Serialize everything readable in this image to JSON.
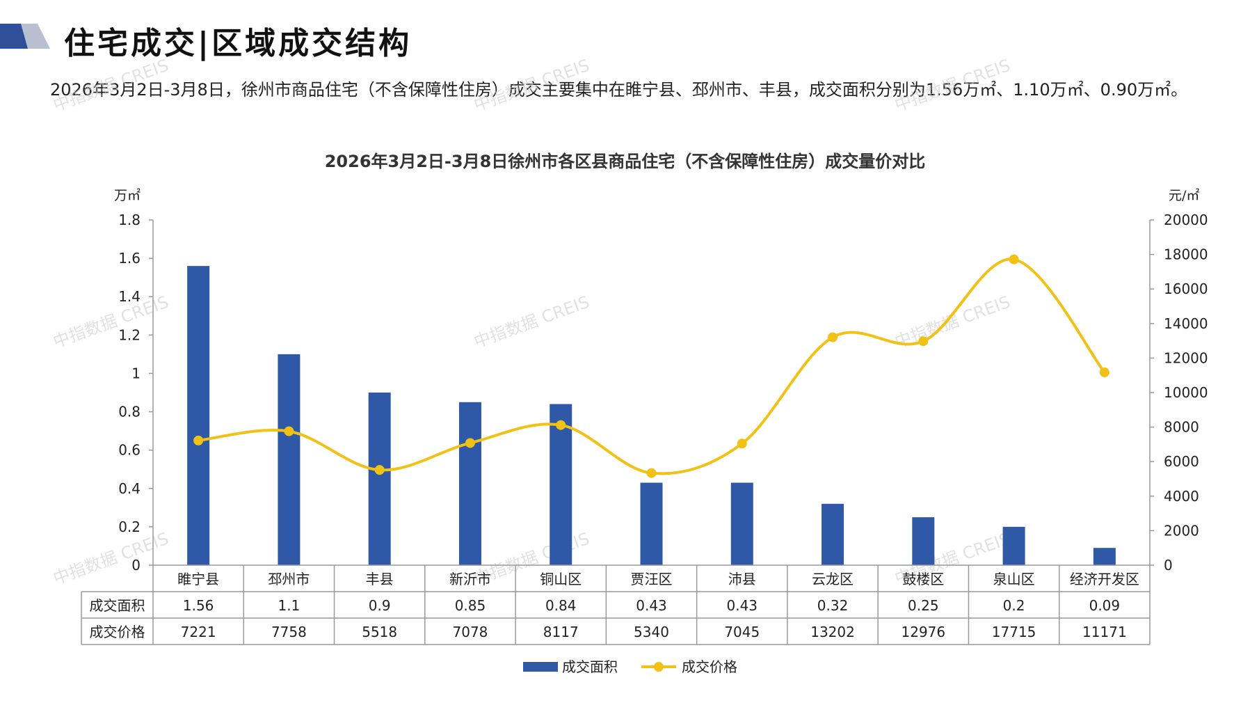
{
  "header": {
    "title": "住宅成交|区域成交结构"
  },
  "summary": "2026年3月2日-3月8日，徐州市商品住宅（不含保障性住房）成交主要集中在睢宁县、邳州市、丰县，成交面积分别为1.56万㎡、1.10万㎡、0.90万㎡。",
  "watermark": "中指数据 CREIS",
  "colors": {
    "bar": "#2f58a6",
    "line": "#f2c115",
    "logo_dark": "#2f4f9a",
    "logo_light": "#b8c0d0"
  },
  "chart_data": {
    "type": "bar+line",
    "title": "2026年3月2日-3月8日徐州市各区县商品住宅（不含保障性住房）成交量价对比",
    "categories": [
      "睢宁县",
      "邳州市",
      "丰县",
      "新沂市",
      "铜山区",
      "贾汪区",
      "沛县",
      "云龙区",
      "鼓楼区",
      "泉山区",
      "经济开发区"
    ],
    "series": [
      {
        "name": "成交面积",
        "type": "bar",
        "axis": "left",
        "values": [
          1.56,
          1.1,
          0.9,
          0.85,
          0.84,
          0.43,
          0.43,
          0.32,
          0.25,
          0.2,
          0.09
        ],
        "labels": [
          "1.56",
          "1.1",
          "0.9",
          "0.85",
          "0.84",
          "0.43",
          "0.43",
          "0.32",
          "0.25",
          "0.2",
          "0.09"
        ]
      },
      {
        "name": "成交价格",
        "type": "line",
        "axis": "right",
        "values": [
          7221,
          7758,
          5518,
          7078,
          8117,
          5340,
          7045,
          13202,
          12976,
          17715,
          11171
        ],
        "labels": [
          "7221",
          "7758",
          "5518",
          "7078",
          "8117",
          "5340",
          "7045",
          "13202",
          "12976",
          "17715",
          "11171"
        ]
      }
    ],
    "y_left": {
      "unit": "万㎡",
      "min": 0,
      "max": 1.8,
      "ticks": [
        0,
        0.2,
        0.4,
        0.6,
        0.8,
        1,
        1.2,
        1.4,
        1.6,
        1.8
      ],
      "tick_labels": [
        "0",
        "0.2",
        "0.4",
        "0.6",
        "0.8",
        "1",
        "1.2",
        "1.4",
        "1.6",
        "1.8"
      ]
    },
    "y_right": {
      "unit": "元/㎡",
      "min": 0,
      "max": 20000,
      "ticks": [
        0,
        2000,
        4000,
        6000,
        8000,
        10000,
        12000,
        14000,
        16000,
        18000,
        20000
      ],
      "tick_labels": [
        "0",
        "2000",
        "4000",
        "6000",
        "8000",
        "10000",
        "12000",
        "14000",
        "16000",
        "18000",
        "20000"
      ]
    },
    "grid": false,
    "legend": "bottom",
    "data_table": true
  }
}
